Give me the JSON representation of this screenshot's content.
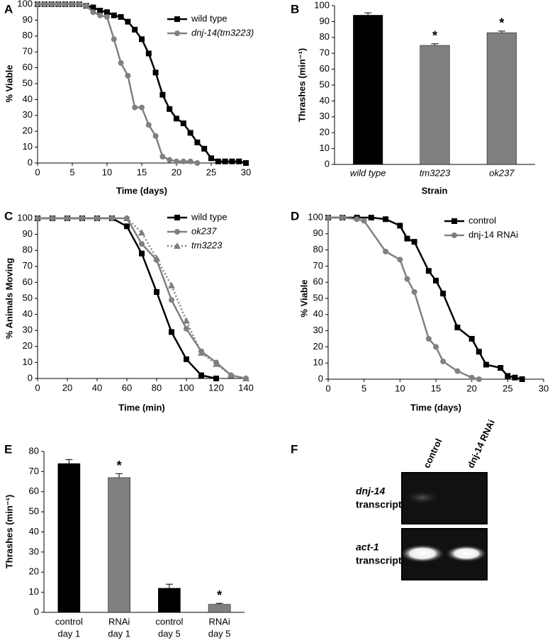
{
  "chart_data": [
    {
      "panel": "A",
      "type": "line",
      "xlabel": "Time (days)",
      "ylabel": "% Viable",
      "xlim": [
        0,
        30
      ],
      "xticks": [
        0,
        5,
        10,
        15,
        20,
        25,
        30
      ],
      "ylim": [
        0,
        100
      ],
      "yticks": [
        0,
        10,
        20,
        30,
        40,
        50,
        60,
        70,
        80,
        90,
        100
      ],
      "series": [
        {
          "name": "wild type",
          "color": "#000000",
          "marker": "square",
          "italic": false,
          "x": [
            0,
            1,
            2,
            3,
            4,
            5,
            6,
            7,
            8,
            9,
            10,
            11,
            12,
            13,
            14,
            15,
            16,
            17,
            18,
            19,
            20,
            21,
            22,
            23,
            24,
            25,
            26,
            27,
            28,
            29,
            30
          ],
          "values": [
            100,
            100,
            100,
            100,
            100,
            100,
            100,
            99,
            98,
            96,
            95,
            93,
            92,
            89,
            84,
            78,
            69,
            57,
            43,
            34,
            28,
            25,
            19,
            13,
            9,
            3,
            1,
            1,
            1,
            1,
            0
          ]
        },
        {
          "name": "dnj-14(tm3223)",
          "color": "#808080",
          "marker": "circle",
          "italic": true,
          "x": [
            0,
            1,
            2,
            3,
            4,
            5,
            6,
            7,
            8,
            9,
            10,
            11,
            12,
            13,
            14,
            15,
            16,
            17,
            18,
            19,
            20,
            21,
            22,
            23
          ],
          "values": [
            100,
            100,
            100,
            100,
            100,
            100,
            100,
            99,
            95,
            93,
            92,
            78,
            63,
            55,
            35,
            35,
            24,
            17,
            4,
            2,
            1,
            1,
            1,
            0
          ]
        }
      ]
    },
    {
      "panel": "B",
      "type": "bar",
      "xlabel": "Strain",
      "ylabel": "Thrashes (min⁻¹)",
      "italic_categories": true,
      "categories": [
        "wild type",
        "tm3223",
        "ok237"
      ],
      "values": [
        94,
        75,
        83
      ],
      "errors": [
        1.5,
        1,
        1
      ],
      "colors": [
        "#000000",
        "#808080",
        "#808080"
      ],
      "annotations": [
        null,
        "*",
        "*"
      ],
      "ylim": [
        0,
        100
      ],
      "yticks": [
        0,
        10,
        20,
        30,
        40,
        50,
        60,
        70,
        80,
        90,
        100
      ]
    },
    {
      "panel": "C",
      "type": "line",
      "xlabel": "Time (min)",
      "ylabel": "% Animals Moving",
      "xlim": [
        0,
        140
      ],
      "xticks": [
        0,
        20,
        40,
        60,
        80,
        100,
        120,
        140
      ],
      "ylim": [
        0,
        100
      ],
      "yticks": [
        0,
        10,
        20,
        30,
        40,
        50,
        60,
        70,
        80,
        90,
        100
      ],
      "series": [
        {
          "name": "wild type",
          "color": "#000000",
          "marker": "square",
          "italic": false,
          "x": [
            0,
            10,
            20,
            30,
            40,
            50,
            60,
            70,
            80,
            90,
            100,
            110,
            120
          ],
          "values": [
            100,
            100,
            100,
            100,
            100,
            100,
            95,
            78,
            54,
            29,
            12,
            2,
            0
          ]
        },
        {
          "name": "ok237",
          "color": "#808080",
          "marker": "circle",
          "italic": true,
          "x": [
            0,
            10,
            20,
            30,
            40,
            50,
            60,
            70,
            80,
            90,
            100,
            110,
            120,
            130,
            140
          ],
          "values": [
            100,
            100,
            100,
            100,
            100,
            100,
            100,
            84,
            74,
            49,
            31,
            17,
            10,
            2,
            0
          ]
        },
        {
          "name": "tm3223",
          "color": "#808080",
          "marker": "triangle",
          "italic": true,
          "dotted": true,
          "x": [
            60,
            70,
            80,
            90,
            100,
            110,
            120,
            130,
            140
          ],
          "values": [
            100,
            91,
            75,
            58,
            36,
            16,
            9,
            2,
            0
          ]
        }
      ]
    },
    {
      "panel": "D",
      "type": "line",
      "xlabel": "Time (days)",
      "ylabel": "% Viable",
      "xlim": [
        0,
        30
      ],
      "xticks": [
        0,
        5,
        10,
        15,
        20,
        25,
        30
      ],
      "ylim": [
        0,
        100
      ],
      "yticks": [
        0,
        10,
        20,
        30,
        40,
        50,
        60,
        70,
        80,
        90,
        100
      ],
      "series": [
        {
          "name": "control",
          "color": "#000000",
          "marker": "square",
          "italic": false,
          "x": [
            0,
            2,
            4,
            6,
            8,
            10,
            11,
            12,
            14,
            15,
            16,
            18,
            20,
            21,
            22,
            24,
            25,
            26,
            27
          ],
          "values": [
            100,
            100,
            100,
            100,
            99,
            95,
            87,
            85,
            67,
            61,
            53,
            32,
            25,
            17,
            9,
            7,
            2,
            1,
            0
          ]
        },
        {
          "name": "dnj-14 RNAi",
          "color": "#808080",
          "marker": "circle",
          "italic": false,
          "x": [
            0,
            2,
            4,
            5,
            8,
            10,
            11,
            12,
            14,
            15,
            16,
            18,
            20,
            21
          ],
          "values": [
            100,
            100,
            99,
            98,
            79,
            74,
            62,
            54,
            25,
            20,
            11,
            5,
            1,
            0
          ]
        }
      ]
    },
    {
      "panel": "E",
      "type": "bar",
      "ylabel": "Thrashes (min⁻¹)",
      "categories": [
        [
          "control",
          "day 1"
        ],
        [
          "RNAi",
          "day 1"
        ],
        [
          "control",
          "day 5"
        ],
        [
          "RNAi",
          "day 5"
        ]
      ],
      "values": [
        74,
        67,
        12,
        4
      ],
      "errors": [
        2,
        2,
        2,
        0.5
      ],
      "colors": [
        "#000000",
        "#808080",
        "#000000",
        "#808080"
      ],
      "annotations": [
        null,
        "*",
        null,
        "*"
      ],
      "ylim": [
        0,
        80
      ],
      "yticks": [
        0,
        10,
        20,
        30,
        40,
        50,
        60,
        70,
        80
      ]
    },
    {
      "panel": "F",
      "type": "gel",
      "lanes": [
        "control",
        "dnj-14 RNAi"
      ],
      "rows": [
        [
          "dnj-14",
          "transcript"
        ],
        [
          "act-1",
          "transcript"
        ]
      ]
    }
  ]
}
